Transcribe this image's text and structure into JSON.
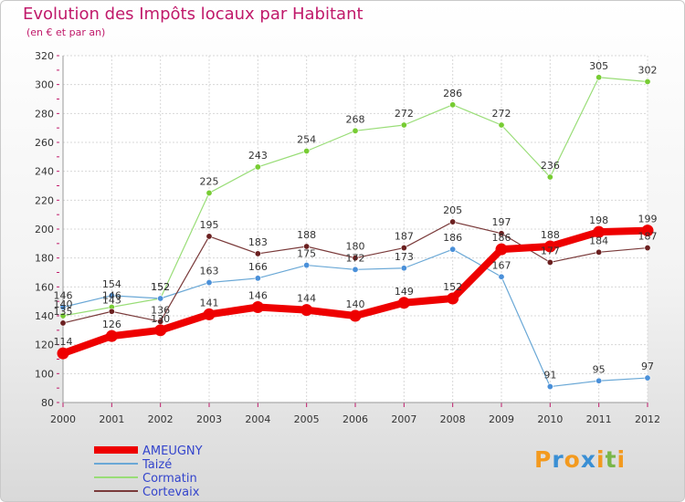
{
  "title": "Evolution des Impôts locaux par Habitant",
  "subtitle": "(en € et par an)",
  "brand": {
    "letters": [
      "P",
      "r",
      "o",
      "x",
      "i",
      "t",
      "i"
    ],
    "colors": [
      "#f39a1f",
      "#3a8fd4",
      "#f39a1f",
      "#3a8fd4",
      "#f39a1f",
      "#7ab648",
      "#f39a1f"
    ]
  },
  "chart_data": {
    "type": "line",
    "x": [
      "2000",
      "2001",
      "2002",
      "2003",
      "2004",
      "2005",
      "2006",
      "2007",
      "2008",
      "2009",
      "2010",
      "2011",
      "2012"
    ],
    "ylim": [
      80,
      320
    ],
    "yticks": [
      80,
      100,
      120,
      140,
      160,
      180,
      200,
      220,
      240,
      260,
      280,
      300,
      320
    ],
    "grid": true,
    "legend": "bottom-left",
    "series": [
      {
        "name": "Cormatin",
        "color": "#99dd77",
        "marker": "#77cc33",
        "width": 1.2,
        "values": [
          140,
          146,
          152,
          225,
          243,
          254,
          268,
          272,
          286,
          272,
          236,
          305,
          302
        ]
      },
      {
        "name": "Taizé",
        "color": "#6aa8d6",
        "marker": "#4a90d9",
        "width": 1.2,
        "values": [
          146,
          154,
          152,
          163,
          166,
          175,
          172,
          173,
          186,
          167,
          91,
          95,
          97
        ]
      },
      {
        "name": "Cortevaix",
        "color": "#7a3a3a",
        "marker": "#6b2020",
        "width": 1.2,
        "values": [
          135,
          143,
          136,
          195,
          183,
          188,
          180,
          187,
          205,
          197,
          177,
          184,
          187
        ]
      },
      {
        "name": "AMEUGNY",
        "color": "#ee0000",
        "marker": "#ee0000",
        "width": 8,
        "values": [
          114,
          126,
          130,
          141,
          146,
          144,
          140,
          149,
          152,
          186,
          188,
          198,
          199
        ]
      }
    ],
    "legend_order": [
      "AMEUGNY",
      "Taizé",
      "Cormatin",
      "Cortevaix"
    ]
  }
}
